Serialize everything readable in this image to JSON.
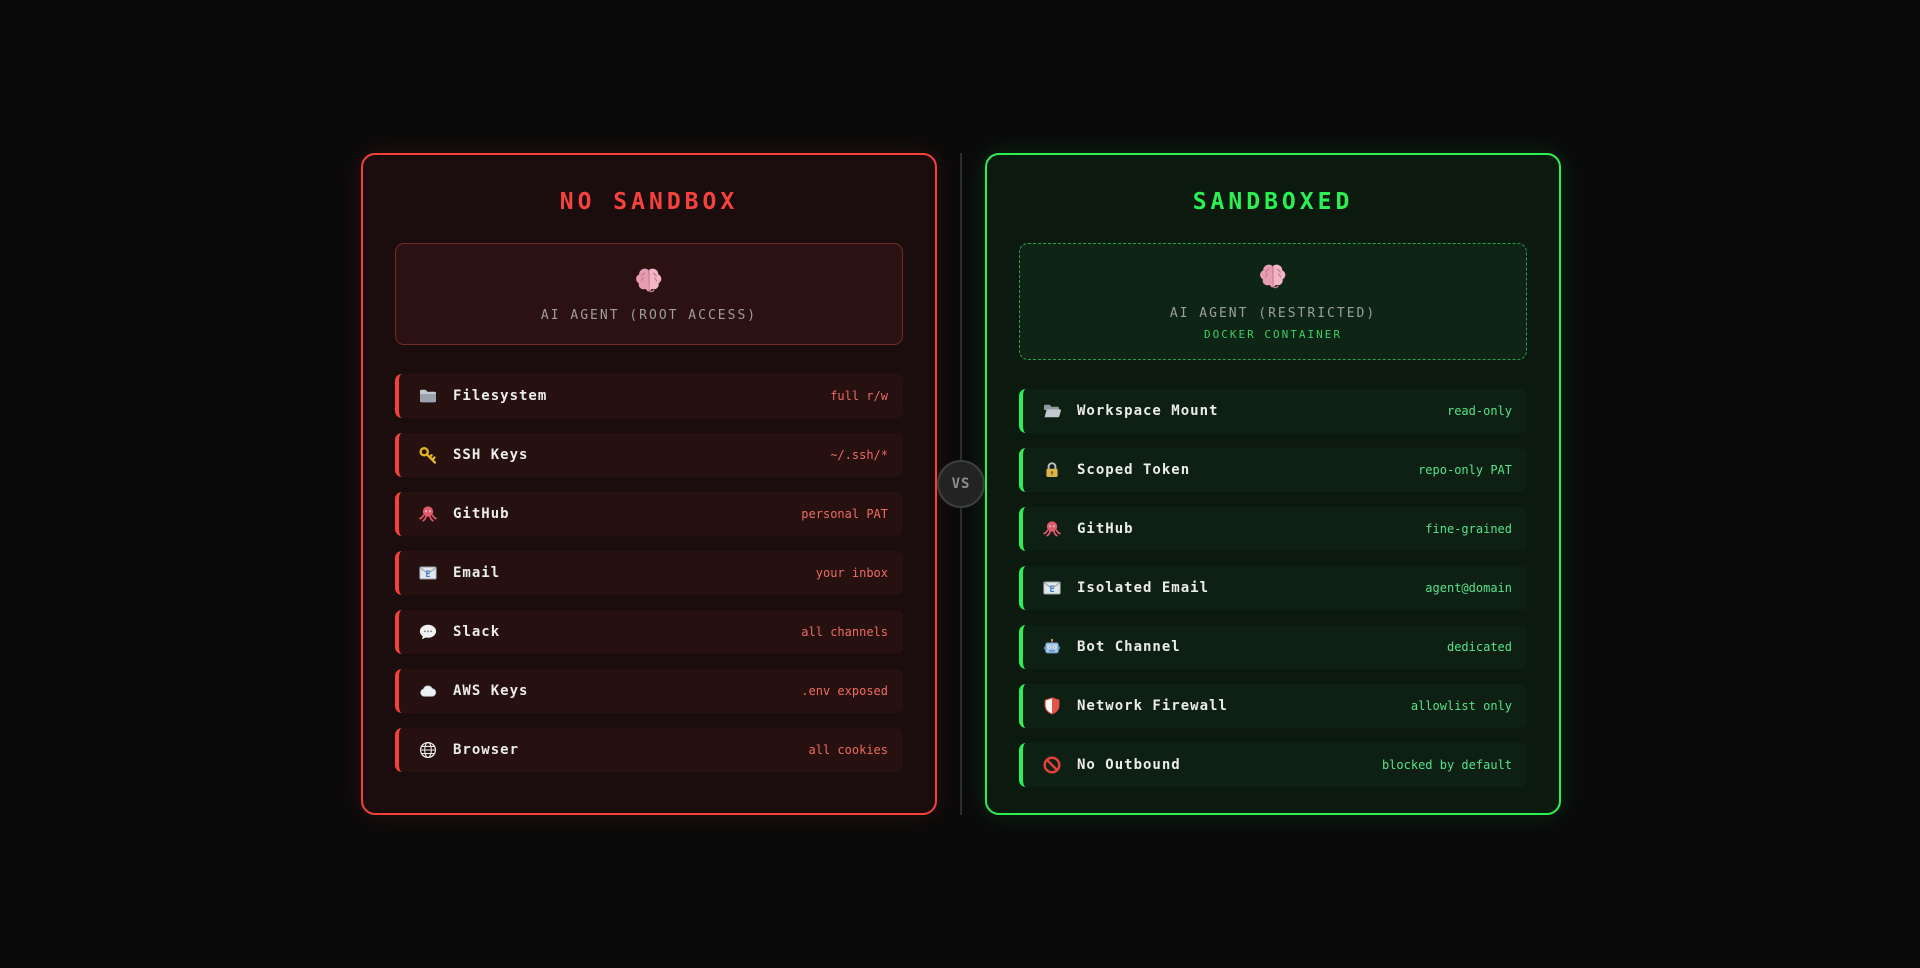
{
  "vs_badge": {
    "label": "VS"
  },
  "colors": {
    "background": "#0a0a0a",
    "red_accent": "#f4423a",
    "red_value_text": "#ef6b62",
    "green_accent": "#2bf052",
    "green_value_text": "#57e389",
    "label_text": "#ececec",
    "agent_text": "#9e9e9e",
    "docker_text": "#3bcf63",
    "divider": "#2d2d2d"
  },
  "left_panel": {
    "title": "NO SANDBOX",
    "agent": {
      "icon": "brain",
      "label": "AI AGENT (ROOT ACCESS)"
    },
    "rows": [
      {
        "icon": "folder",
        "label": "Filesystem",
        "value": "full r/w"
      },
      {
        "icon": "key",
        "label": "SSH Keys",
        "value": "~/.ssh/*"
      },
      {
        "icon": "octopus",
        "label": "GitHub",
        "value": "personal PAT"
      },
      {
        "icon": "email",
        "label": "Email",
        "value": "your inbox"
      },
      {
        "icon": "speech-bubble",
        "label": "Slack",
        "value": "all channels"
      },
      {
        "icon": "cloud",
        "label": "AWS Keys",
        "value": ".env exposed"
      },
      {
        "icon": "globe",
        "label": "Browser",
        "value": "all cookies"
      }
    ]
  },
  "right_panel": {
    "title": "SANDBOXED",
    "agent": {
      "icon": "brain",
      "label": "AI AGENT (RESTRICTED)",
      "sublabel": "DOCKER CONTAINER"
    },
    "rows": [
      {
        "icon": "folder-open",
        "label": "Workspace Mount",
        "value": "read-only"
      },
      {
        "icon": "lock",
        "label": "Scoped Token",
        "value": "repo-only PAT"
      },
      {
        "icon": "octopus",
        "label": "GitHub",
        "value": "fine-grained"
      },
      {
        "icon": "email",
        "label": "Isolated Email",
        "value": "agent@domain"
      },
      {
        "icon": "robot",
        "label": "Bot Channel",
        "value": "dedicated"
      },
      {
        "icon": "shield",
        "label": "Network Firewall",
        "value": "allowlist only"
      },
      {
        "icon": "no-entry",
        "label": "No Outbound",
        "value": "blocked by default"
      }
    ]
  }
}
